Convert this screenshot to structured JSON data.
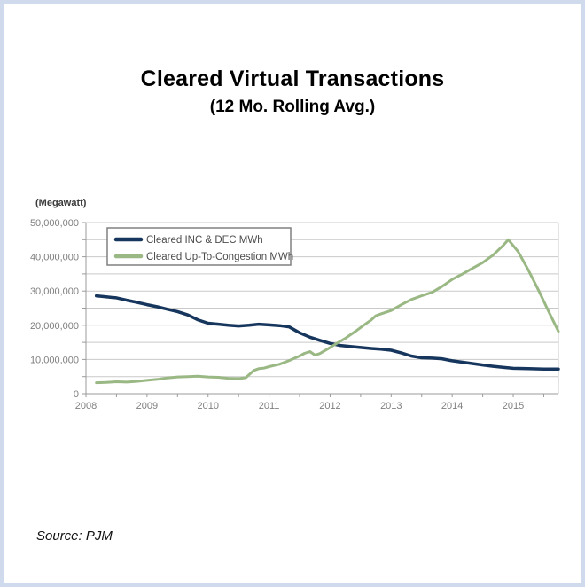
{
  "page": {
    "title": "Cleared Virtual Transactions",
    "subtitle": "(12 Mo. Rolling Avg.)",
    "source": "Source: PJM"
  },
  "chart_data": {
    "type": "line",
    "title": "Cleared Virtual Transactions",
    "subtitle": "(12 Mo. Rolling Avg.)",
    "unit_label": "(Megawatt)",
    "xlim": [
      2008,
      2015.74
    ],
    "ylim": [
      0,
      50000000
    ],
    "y_grid_step": 5000000,
    "x_minor_step": 0.5,
    "grid_on": true,
    "legend_position": "top-left",
    "y_ticks": [
      {
        "value": 0,
        "label": "0"
      },
      {
        "value": 10000000,
        "label": "10,000,000"
      },
      {
        "value": 20000000,
        "label": "20,000,000"
      },
      {
        "value": 30000000,
        "label": "30,000,000"
      },
      {
        "value": 40000000,
        "label": "40,000,000"
      },
      {
        "value": 50000000,
        "label": "50,000,000"
      }
    ],
    "x_ticks": [
      {
        "value": 2008,
        "label": "2008"
      },
      {
        "value": 2009,
        "label": "2009"
      },
      {
        "value": 2010,
        "label": "2010"
      },
      {
        "value": 2011,
        "label": "2011"
      },
      {
        "value": 2012,
        "label": "2012"
      },
      {
        "value": 2013,
        "label": "2013"
      },
      {
        "value": 2014,
        "label": "2014"
      },
      {
        "value": 2015,
        "label": "2015"
      }
    ],
    "series": [
      {
        "name": "Cleared INC & DEC MWh",
        "color": "#17365d",
        "stroke_width": 3.5,
        "points": [
          [
            2008.17,
            28600000
          ],
          [
            2008.33,
            28300000
          ],
          [
            2008.5,
            28000000
          ],
          [
            2008.67,
            27300000
          ],
          [
            2008.83,
            26700000
          ],
          [
            2009.0,
            26000000
          ],
          [
            2009.17,
            25400000
          ],
          [
            2009.33,
            24700000
          ],
          [
            2009.5,
            24000000
          ],
          [
            2009.67,
            23000000
          ],
          [
            2009.83,
            21600000
          ],
          [
            2010.0,
            20600000
          ],
          [
            2010.17,
            20300000
          ],
          [
            2010.33,
            20000000
          ],
          [
            2010.5,
            19800000
          ],
          [
            2010.67,
            20000000
          ],
          [
            2010.83,
            20300000
          ],
          [
            2011.0,
            20100000
          ],
          [
            2011.17,
            19900000
          ],
          [
            2011.33,
            19500000
          ],
          [
            2011.5,
            17800000
          ],
          [
            2011.67,
            16500000
          ],
          [
            2011.83,
            15600000
          ],
          [
            2012.0,
            14700000
          ],
          [
            2012.17,
            14100000
          ],
          [
            2012.33,
            13800000
          ],
          [
            2012.5,
            13500000
          ],
          [
            2012.67,
            13200000
          ],
          [
            2012.83,
            13000000
          ],
          [
            2013.0,
            12700000
          ],
          [
            2013.17,
            11900000
          ],
          [
            2013.33,
            11000000
          ],
          [
            2013.5,
            10500000
          ],
          [
            2013.67,
            10400000
          ],
          [
            2013.83,
            10200000
          ],
          [
            2014.0,
            9600000
          ],
          [
            2014.17,
            9200000
          ],
          [
            2014.33,
            8800000
          ],
          [
            2014.5,
            8400000
          ],
          [
            2014.67,
            8000000
          ],
          [
            2014.83,
            7700000
          ],
          [
            2015.0,
            7400000
          ],
          [
            2015.25,
            7300000
          ],
          [
            2015.5,
            7200000
          ],
          [
            2015.74,
            7200000
          ]
        ]
      },
      {
        "name": "Cleared Up-To-Congestion MWh",
        "color": "#9ab884",
        "stroke_width": 3,
        "points": [
          [
            2008.17,
            3200000
          ],
          [
            2008.33,
            3300000
          ],
          [
            2008.5,
            3500000
          ],
          [
            2008.67,
            3400000
          ],
          [
            2008.83,
            3600000
          ],
          [
            2009.0,
            3900000
          ],
          [
            2009.17,
            4200000
          ],
          [
            2009.33,
            4600000
          ],
          [
            2009.5,
            4900000
          ],
          [
            2009.67,
            5000000
          ],
          [
            2009.83,
            5100000
          ],
          [
            2010.0,
            4900000
          ],
          [
            2010.17,
            4800000
          ],
          [
            2010.33,
            4500000
          ],
          [
            2010.5,
            4400000
          ],
          [
            2010.62,
            4700000
          ],
          [
            2010.75,
            6800000
          ],
          [
            2010.83,
            7300000
          ],
          [
            2010.92,
            7500000
          ],
          [
            2011.0,
            7900000
          ],
          [
            2011.17,
            8600000
          ],
          [
            2011.33,
            9700000
          ],
          [
            2011.5,
            11000000
          ],
          [
            2011.58,
            11800000
          ],
          [
            2011.67,
            12300000
          ],
          [
            2011.75,
            11300000
          ],
          [
            2011.83,
            11700000
          ],
          [
            2012.0,
            13500000
          ],
          [
            2012.08,
            14400000
          ],
          [
            2012.25,
            16200000
          ],
          [
            2012.42,
            18300000
          ],
          [
            2012.58,
            20400000
          ],
          [
            2012.67,
            21500000
          ],
          [
            2012.75,
            22800000
          ],
          [
            2012.83,
            23300000
          ],
          [
            2013.0,
            24300000
          ],
          [
            2013.17,
            26000000
          ],
          [
            2013.33,
            27500000
          ],
          [
            2013.5,
            28600000
          ],
          [
            2013.67,
            29600000
          ],
          [
            2013.83,
            31300000
          ],
          [
            2014.0,
            33400000
          ],
          [
            2014.17,
            35000000
          ],
          [
            2014.33,
            36600000
          ],
          [
            2014.5,
            38300000
          ],
          [
            2014.67,
            40500000
          ],
          [
            2014.83,
            43200000
          ],
          [
            2014.92,
            45000000
          ],
          [
            2015.08,
            41500000
          ],
          [
            2015.25,
            36000000
          ],
          [
            2015.42,
            30000000
          ],
          [
            2015.58,
            24000000
          ],
          [
            2015.74,
            18200000
          ]
        ]
      }
    ]
  }
}
